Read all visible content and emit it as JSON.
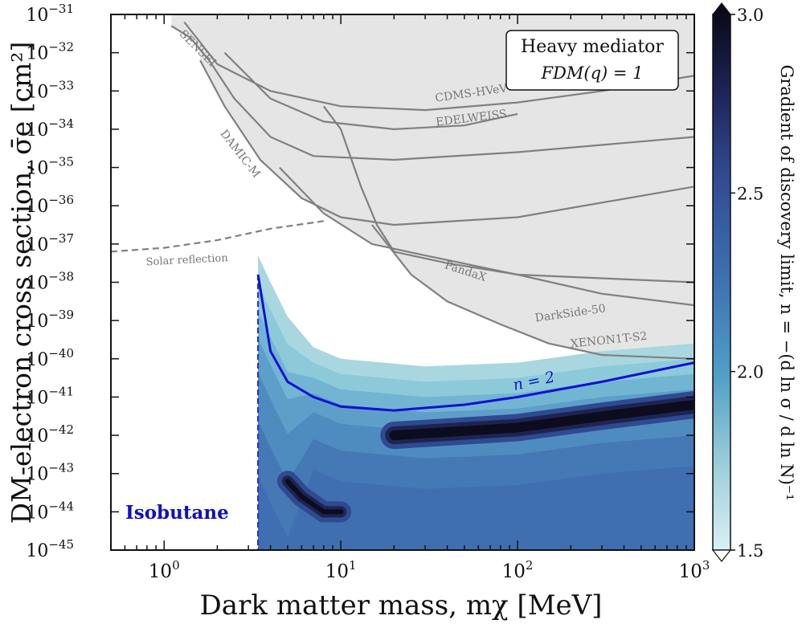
{
  "chart_data": {
    "type": "contour",
    "xlabel": "Dark matter mass, mχ [MeV]",
    "ylabel": "DM-electron cross section, σ̄e [cm²]",
    "x_scale": "log",
    "y_scale": "log",
    "xlim": [
      0.5,
      1000
    ],
    "ylim": [
      1e-45,
      1e-31
    ],
    "x_ticks": [
      {
        "value": 1,
        "label": "10",
        "exp": "0"
      },
      {
        "value": 10,
        "label": "10",
        "exp": "1"
      },
      {
        "value": 100,
        "label": "10",
        "exp": "2"
      },
      {
        "value": 1000,
        "label": "10",
        "exp": "3"
      }
    ],
    "y_ticks": [
      {
        "value": -31,
        "label": "10",
        "exp": "−31"
      },
      {
        "value": -32,
        "label": "10",
        "exp": "−32"
      },
      {
        "value": -33,
        "label": "10",
        "exp": "−33"
      },
      {
        "value": -34,
        "label": "10",
        "exp": "−34"
      },
      {
        "value": -35,
        "label": "10",
        "exp": "−35"
      },
      {
        "value": -36,
        "label": "10",
        "exp": "−36"
      },
      {
        "value": -37,
        "label": "10",
        "exp": "−37"
      },
      {
        "value": -38,
        "label": "10",
        "exp": "−38"
      },
      {
        "value": -39,
        "label": "10",
        "exp": "−39"
      },
      {
        "value": -40,
        "label": "10",
        "exp": "−40"
      },
      {
        "value": -41,
        "label": "10",
        "exp": "−41"
      },
      {
        "value": -42,
        "label": "10",
        "exp": "−42"
      },
      {
        "value": -43,
        "label": "10",
        "exp": "−43"
      },
      {
        "value": -44,
        "label": "10",
        "exp": "−44"
      },
      {
        "value": -45,
        "label": "10",
        "exp": "−45"
      }
    ],
    "annotation_box": {
      "line1": "Heavy mediator",
      "line2": "FDM(q) = 1"
    },
    "target_label": "Isobutane",
    "n2_label": "n = 2",
    "colorbar": {
      "label": "Gradient of discovery limit, n = −(d ln σ / d ln N)⁻¹",
      "min": 1.5,
      "max": 3.0,
      "ticks": [
        {
          "value": 3.0,
          "label": "3.0"
        },
        {
          "value": 2.5,
          "label": "2.5"
        },
        {
          "value": 2.0,
          "label": "2.0"
        },
        {
          "value": 1.5,
          "label": "1.5"
        }
      ],
      "colors": [
        "#cfeaf0",
        "#8fc7d8",
        "#5b9fc9",
        "#3d6fb3",
        "#2f4a90",
        "#1d2452",
        "#0c0c1e"
      ]
    },
    "colors": {
      "excluded_fill": "#e5e5e5",
      "curve": "#808080",
      "n2_line": "#1010d0",
      "isobutane_text": "#1010c0"
    },
    "experiments": [
      {
        "name": "SENSEI",
        "label_m": 1.5,
        "label_s": -31.95,
        "points": [
          [
            1.1,
            -31.3
          ],
          [
            1.4,
            -31.6
          ],
          [
            1.8,
            -32.2
          ],
          [
            2.5,
            -33.2
          ],
          [
            4,
            -34.2
          ],
          [
            7,
            -34.7
          ],
          [
            20,
            -34.8
          ],
          [
            100,
            -34.6
          ],
          [
            1000,
            -34.2
          ]
        ]
      },
      {
        "name": "DAMIC-M",
        "label_m": 2.6,
        "label_s": -34.7,
        "points": [
          [
            1.6,
            -32.2
          ],
          [
            2.2,
            -33.4
          ],
          [
            3.5,
            -34.8
          ],
          [
            6,
            -35.8
          ],
          [
            10,
            -36.3
          ],
          [
            20,
            -36.5
          ],
          [
            100,
            -36.3
          ],
          [
            1000,
            -35.5
          ]
        ]
      },
      {
        "name": "CDMS-HVeV",
        "label_m": 55,
        "label_s": -33.15,
        "points": [
          [
            1.3,
            -31.2
          ],
          [
            2,
            -32.3
          ],
          [
            4,
            -33.0
          ],
          [
            10,
            -33.4
          ],
          [
            30,
            -33.5
          ],
          [
            100,
            -33.3
          ],
          [
            300,
            -33.0
          ],
          [
            1000,
            -32.6
          ]
        ]
      },
      {
        "name": "EDELWEISS",
        "label_m": 55,
        "label_s": -33.8,
        "points": [
          [
            2.2,
            -32.0
          ],
          [
            4,
            -33.2
          ],
          [
            8,
            -33.8
          ],
          [
            20,
            -34.0
          ],
          [
            50,
            -33.9
          ],
          [
            100,
            -33.6
          ]
        ]
      },
      {
        "name": "PandaX",
        "label_m": 50,
        "label_s": -37.8,
        "points": [
          [
            8,
            -33.4
          ],
          [
            10,
            -34.0
          ],
          [
            13,
            -35.5
          ],
          [
            16,
            -36.5
          ],
          [
            20,
            -37.2
          ],
          [
            40,
            -37.5
          ],
          [
            100,
            -37.8
          ],
          [
            1000,
            -38.0
          ]
        ]
      },
      {
        "name": "DarkSide-50",
        "label_m": 200,
        "label_s": -38.9,
        "points": [
          [
            4.5,
            -35.0
          ],
          [
            8,
            -36.2
          ],
          [
            15,
            -37.0
          ],
          [
            30,
            -37.3
          ],
          [
            100,
            -37.8
          ],
          [
            300,
            -38.3
          ],
          [
            1000,
            -38.6
          ]
        ]
      },
      {
        "name": "XENON1T-S2",
        "label_m": 330,
        "label_s": -39.6,
        "points": [
          [
            15,
            -36.5
          ],
          [
            25,
            -37.8
          ],
          [
            40,
            -38.5
          ],
          [
            80,
            -39.1
          ],
          [
            150,
            -39.6
          ],
          [
            300,
            -39.9
          ],
          [
            1000,
            -40.0
          ]
        ]
      }
    ],
    "solar_reflection": {
      "name": "Solar reflection",
      "points": [
        [
          0.5,
          -37.2
        ],
        [
          1,
          -37.1
        ],
        [
          2,
          -36.9
        ],
        [
          4,
          -36.6
        ],
        [
          8,
          -36.4
        ]
      ]
    },
    "isobutane_threshold_m": 3.4,
    "n2_curve": [
      [
        3.4,
        -37.8
      ],
      [
        4,
        -39.8
      ],
      [
        5,
        -40.6
      ],
      [
        7,
        -41.0
      ],
      [
        10,
        -41.25
      ],
      [
        20,
        -41.35
      ],
      [
        50,
        -41.2
      ],
      [
        100,
        -41.0
      ],
      [
        300,
        -40.6
      ],
      [
        1000,
        -40.1
      ]
    ],
    "discovery_region_upper": [
      [
        3.4,
        -37.3
      ],
      [
        4,
        -38.0
      ],
      [
        5,
        -38.9
      ],
      [
        7,
        -39.7
      ],
      [
        10,
        -40.0
      ],
      [
        30,
        -40.2
      ],
      [
        100,
        -40.1
      ],
      [
        300,
        -39.8
      ],
      [
        1000,
        -39.6
      ]
    ],
    "ridge_high": [
      [
        20,
        -42.0
      ],
      [
        100,
        -41.8
      ],
      [
        300,
        -41.5
      ],
      [
        1000,
        -41.2
      ]
    ],
    "ridge_low": [
      [
        5,
        -43.2
      ],
      [
        6,
        -43.6
      ],
      [
        8,
        -44.0
      ],
      [
        10,
        -44.0
      ]
    ]
  }
}
